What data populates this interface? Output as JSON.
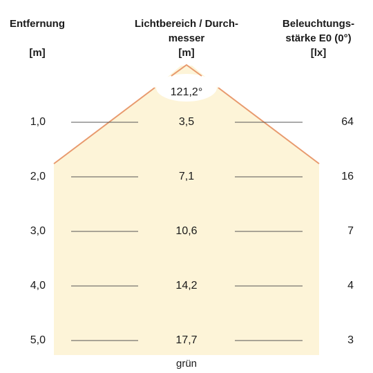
{
  "headers": {
    "distance": {
      "line1": "Entfernung",
      "unit": "[m]"
    },
    "diameter": {
      "line1": "Lichtbereich / Durch-",
      "line2": "messer",
      "unit": "[m]"
    },
    "illuminance": {
      "line1": "Beleuchtungs-",
      "line2": "stärke E0 (0°)",
      "unit": "[lx]"
    }
  },
  "beam_angle": "121,2°",
  "rows": [
    {
      "distance": "1,0",
      "diameter": "3,5",
      "illuminance": "64"
    },
    {
      "distance": "2,0",
      "diameter": "7,1",
      "illuminance": "16"
    },
    {
      "distance": "3,0",
      "diameter": "10,6",
      "illuminance": "7"
    },
    {
      "distance": "4,0",
      "diameter": "14,2",
      "illuminance": "4"
    },
    {
      "distance": "5,0",
      "diameter": "17,7",
      "illuminance": "3"
    }
  ],
  "footer": "grün",
  "colors": {
    "fill": "#fdf4d8",
    "outline": "#e89a6e",
    "rule": "#555555"
  }
}
